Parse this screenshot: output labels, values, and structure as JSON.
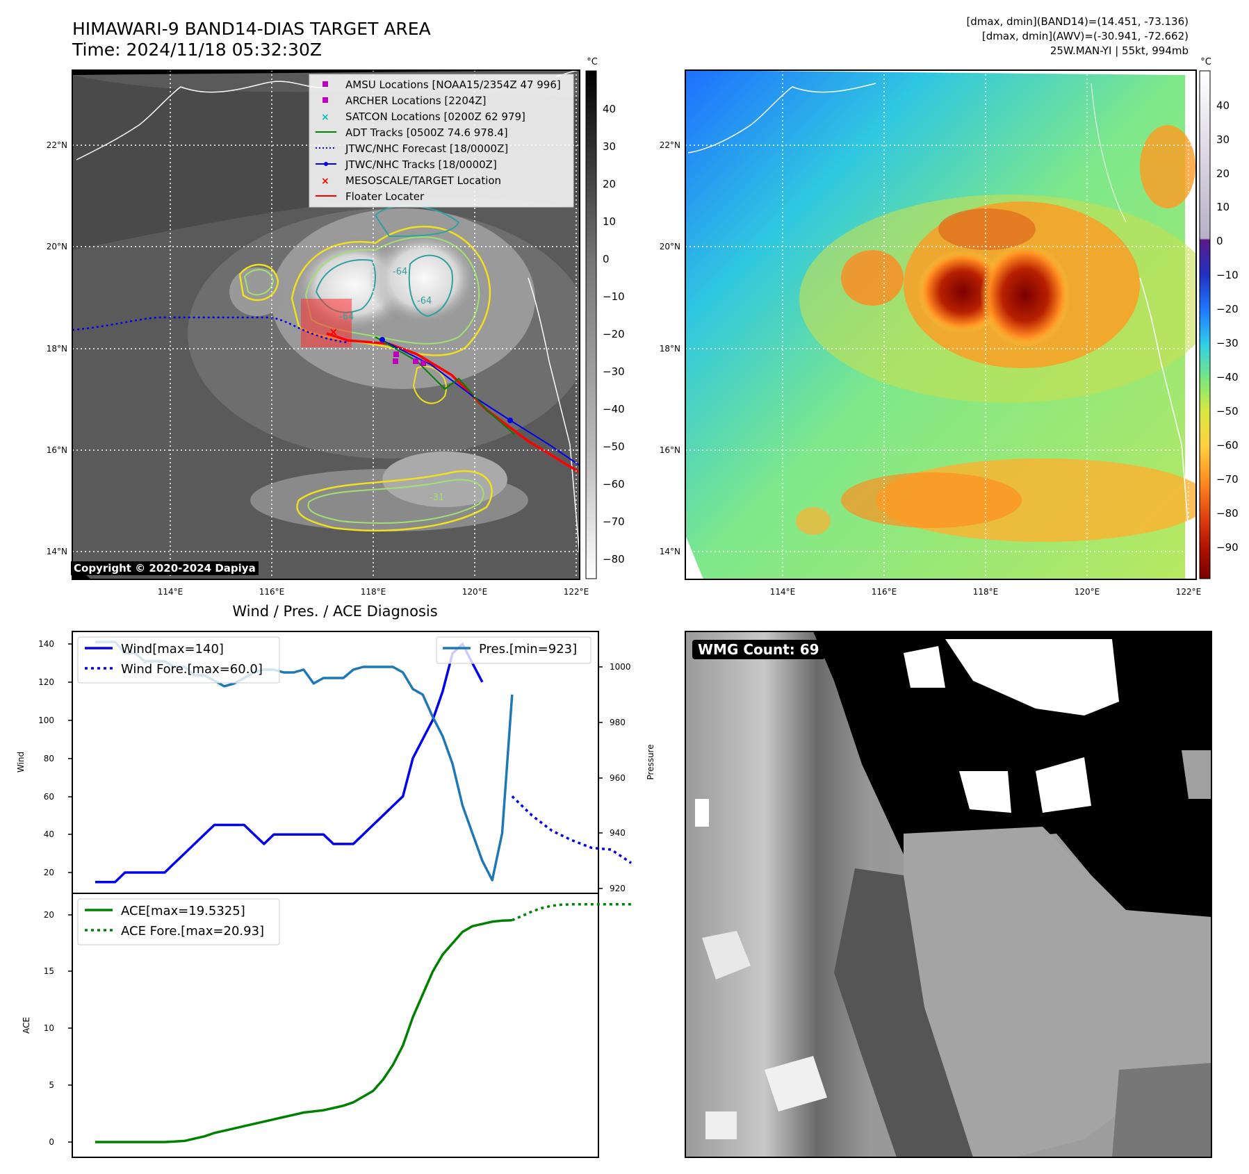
{
  "header": {
    "title_line1": "HIMAWARI-9 BAND14-DIAS TARGET AREA",
    "title_line2": "Time: 2024/11/18 05:32:30Z",
    "info_line1": "[dmax, dmin](BAND14)=(14.451, -73.136)",
    "info_line2": "[dmax, dmin](AWV)=(-30.941, -72.662)",
    "info_line3": "25W.MAN-YI | 55kt, 994mb"
  },
  "ir_panel": {
    "copyright": "Copyright © 2020-2024 Dapiya",
    "lat_labels": [
      "22°N",
      "20°N",
      "18°N",
      "16°N",
      "14°N"
    ],
    "lon_labels": [
      "114°E",
      "116°E",
      "118°E",
      "120°E",
      "122°E"
    ],
    "contour_labels": [
      "-64",
      "-64",
      "-64",
      "-31"
    ],
    "colorbar_unit": "°C",
    "colorbar_ticks": [
      "40",
      "30",
      "20",
      "10",
      "0",
      "−10",
      "−20",
      "−30",
      "−40",
      "−50",
      "−60",
      "−70",
      "−80"
    ],
    "legend": [
      {
        "label": "AMSU Locations [NOAA15/2354Z 47 996]",
        "color": "#bb00bb",
        "marker": "square"
      },
      {
        "label": "ARCHER Locations [2204Z]",
        "color": "#bb00bb",
        "marker": "square"
      },
      {
        "label": "SATCON Locations [0200Z 62 979]",
        "color": "#00bbbb",
        "marker": "x"
      },
      {
        "label": "ADT Tracks [0500Z 74.6 978.4]",
        "color": "#008000",
        "marker": "line"
      },
      {
        "label": "JTWC/NHC Forecast [18/0000Z]",
        "color": "#0000ff",
        "marker": "dotted"
      },
      {
        "label": "JTWC/NHC Tracks [18/0000Z]",
        "color": "#0000ff",
        "marker": "line-dot"
      },
      {
        "label": "MESOSCALE/TARGET Location",
        "color": "#ff0000",
        "marker": "x"
      },
      {
        "label": "Floater Locater",
        "color": "#ff0000",
        "marker": "line"
      }
    ]
  },
  "awv_panel": {
    "lat_labels": [
      "22°N",
      "20°N",
      "18°N",
      "16°N",
      "14°N"
    ],
    "lon_labels": [
      "114°E",
      "116°E",
      "118°E",
      "120°E",
      "122°E"
    ],
    "colorbar_unit": "°C",
    "colorbar_ticks": [
      "40",
      "30",
      "20",
      "10",
      "0",
      "−10",
      "−20",
      "−30",
      "−40",
      "−50",
      "−60",
      "−70",
      "−80",
      "−90"
    ]
  },
  "wmg_panel": {
    "label": "WMG Count: 69"
  },
  "diagnosis": {
    "title": "Wind / Pres. / ACE Diagnosis",
    "wind_axis_label": "Wind",
    "pressure_axis_label": "Pressure",
    "ace_axis_label": "ACE",
    "wind_ticks": [
      "140",
      "120",
      "100",
      "80",
      "60",
      "40",
      "20"
    ],
    "pressure_ticks": [
      "1000",
      "980",
      "960",
      "940",
      "920"
    ],
    "ace_ticks": [
      "20",
      "15",
      "10",
      "5",
      "0"
    ],
    "legend_wind": "Wind[max=140]",
    "legend_wind_fore": "Wind Fore.[max=60.0]",
    "legend_pres": "Pres.[min=923]",
    "legend_ace": "ACE[max=19.5325]",
    "legend_ace_fore": "ACE Fore.[max=20.93]"
  },
  "chart_data": [
    {
      "type": "line",
      "title": "Wind / Pres. / ACE Diagnosis",
      "ylabel": "Wind",
      "ylabel_right": "Pressure",
      "ylim": [
        13,
        146
      ],
      "ylim_right": [
        917,
        1011
      ],
      "colors": {
        "wind": "#0000ee",
        "pressure": "#1f77b4"
      },
      "series": [
        {
          "name": "Wind[max=140]",
          "axis": "left",
          "style": "solid",
          "x": [
            0,
            2,
            3,
            4,
            5,
            6,
            7,
            8,
            9,
            10,
            11,
            12,
            13,
            14,
            15,
            16,
            17,
            18,
            19,
            20,
            21,
            22,
            23,
            24,
            25,
            26,
            27,
            28,
            29,
            30,
            31,
            32,
            33,
            34,
            35,
            36,
            37,
            38,
            39
          ],
          "values": [
            15,
            15,
            20,
            20,
            20,
            20,
            20,
            25,
            30,
            35,
            40,
            45,
            45,
            45,
            45,
            40,
            35,
            40,
            40,
            40,
            40,
            40,
            40,
            35,
            35,
            35,
            40,
            45,
            50,
            55,
            60,
            80,
            90,
            100,
            115,
            135,
            140,
            130,
            120
          ]
        },
        {
          "name": "Wind Fore.[max=60.0]",
          "axis": "left",
          "style": "dotted",
          "x": [
            42,
            44,
            46,
            48,
            50,
            52,
            54
          ],
          "values": [
            60,
            50,
            42,
            37,
            33,
            32,
            25
          ]
        },
        {
          "name": "Pres.[min=923]",
          "axis": "right",
          "style": "solid",
          "x": [
            0,
            2,
            3,
            4,
            5,
            6,
            7,
            8,
            9,
            10,
            11,
            12,
            13,
            14,
            15,
            16,
            17,
            18,
            19,
            20,
            21,
            22,
            23,
            24,
            25,
            26,
            27,
            28,
            29,
            30,
            31,
            32,
            33,
            34,
            35,
            36,
            37,
            38,
            39,
            40,
            41,
            42
          ],
          "values": [
            1009,
            1009,
            1005,
            1005,
            1002,
            1002,
            1002,
            1000,
            1000,
            997,
            997,
            995,
            993,
            994,
            996,
            998,
            999,
            999,
            998,
            998,
            999,
            994,
            996,
            996,
            996,
            999,
            1000,
            1000,
            1000,
            1000,
            998,
            992,
            990,
            982,
            975,
            965,
            950,
            940,
            930,
            923,
            940,
            990
          ]
        }
      ]
    },
    {
      "type": "line",
      "ylabel": "ACE",
      "ylim": [
        -0.5,
        22.3
      ],
      "colors": {
        "ace": "#008000"
      },
      "series": [
        {
          "name": "ACE[max=19.5325]",
          "style": "solid",
          "x": [
            0,
            1,
            2,
            3,
            4,
            5,
            6,
            7,
            8,
            9,
            10,
            11,
            12,
            13,
            14,
            15,
            16,
            17,
            18,
            19,
            20,
            21,
            22,
            23,
            24,
            25,
            26,
            27,
            28,
            29,
            30,
            31,
            32,
            33,
            34,
            35,
            36,
            37,
            38,
            39,
            40,
            41,
            42
          ],
          "values": [
            0,
            0,
            0,
            0,
            0,
            0,
            0,
            0,
            0.05,
            0.1,
            0.3,
            0.5,
            0.8,
            1.0,
            1.2,
            1.4,
            1.6,
            1.8,
            2.0,
            2.2,
            2.4,
            2.6,
            2.7,
            2.8,
            3.0,
            3.2,
            3.5,
            4.0,
            4.5,
            5.5,
            6.8,
            8.5,
            11,
            13,
            15,
            16.5,
            17.5,
            18.5,
            19,
            19.2,
            19.4,
            19.5,
            19.53
          ]
        },
        {
          "name": "ACE Fore.[max=20.93]",
          "style": "dotted",
          "x": [
            42,
            43,
            44,
            45,
            46,
            47,
            48,
            50,
            52,
            54
          ],
          "values": [
            19.53,
            19.9,
            20.3,
            20.6,
            20.8,
            20.9,
            20.93,
            20.93,
            20.93,
            20.93
          ]
        }
      ]
    }
  ]
}
